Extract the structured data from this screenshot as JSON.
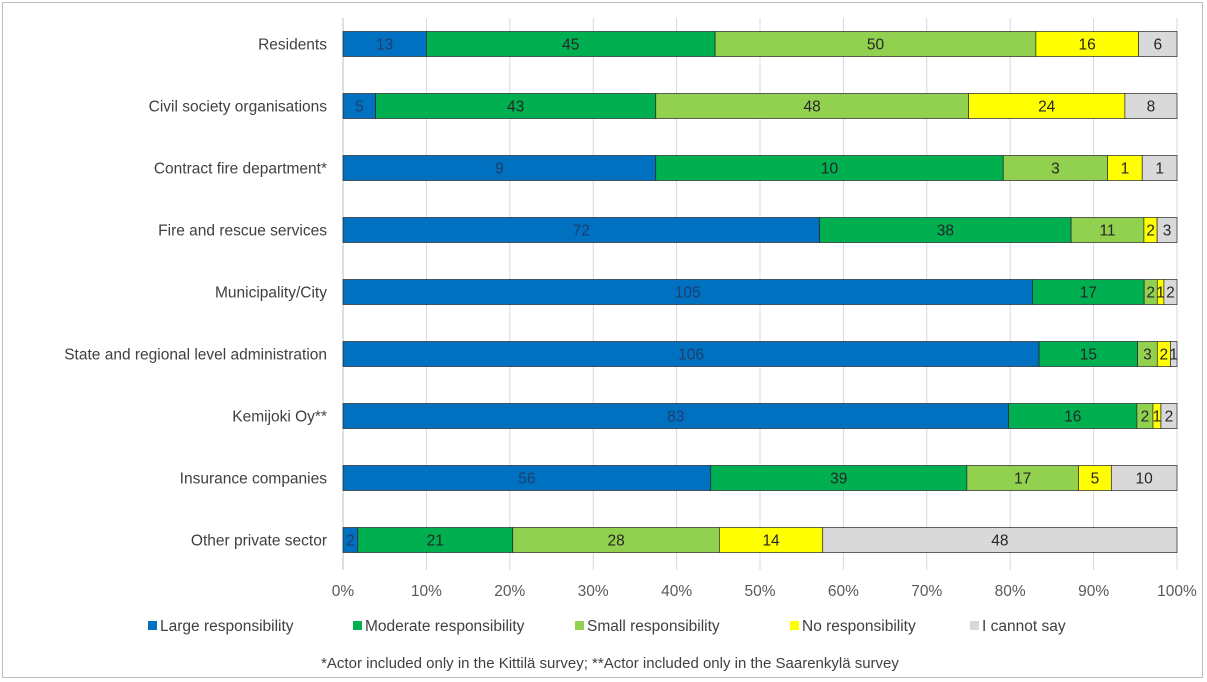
{
  "chart_data": {
    "type": "bar",
    "orientation": "horizontal",
    "stacking": "percent",
    "categories": [
      "Residents",
      "Civil society organisations",
      "Contract fire department*",
      "Fire and rescue services",
      "Municipality/City",
      "State and regional level administration",
      "Kemijoki Oy**",
      "Insurance companies",
      "Other private sector"
    ],
    "series": [
      {
        "name": "Large responsibility",
        "color": "#0070C0",
        "values": [
          13,
          5,
          9,
          72,
          105,
          106,
          83,
          56,
          2
        ]
      },
      {
        "name": "Moderate responsibility",
        "color": "#00B050",
        "values": [
          45,
          43,
          10,
          38,
          17,
          15,
          16,
          39,
          21
        ]
      },
      {
        "name": "Small responsibility",
        "color": "#92D050",
        "values": [
          50,
          48,
          3,
          11,
          2,
          3,
          2,
          17,
          28
        ]
      },
      {
        "name": "No responsibility",
        "color": "#FFFF00",
        "values": [
          16,
          24,
          1,
          2,
          1,
          2,
          1,
          5,
          14
        ]
      },
      {
        "name": "I cannot say",
        "color": "#D9D9D9",
        "values": [
          6,
          8,
          1,
          3,
          2,
          1,
          2,
          10,
          48
        ]
      }
    ],
    "xticks": [
      "0%",
      "10%",
      "20%",
      "30%",
      "40%",
      "50%",
      "60%",
      "70%",
      "80%",
      "90%",
      "100%"
    ],
    "xlim": [
      0,
      100
    ],
    "grid": true,
    "legend": "bottom",
    "footnote": "*Actor included only in the Kittilä survey; **Actor included only in the Saarenkylä survey"
  }
}
